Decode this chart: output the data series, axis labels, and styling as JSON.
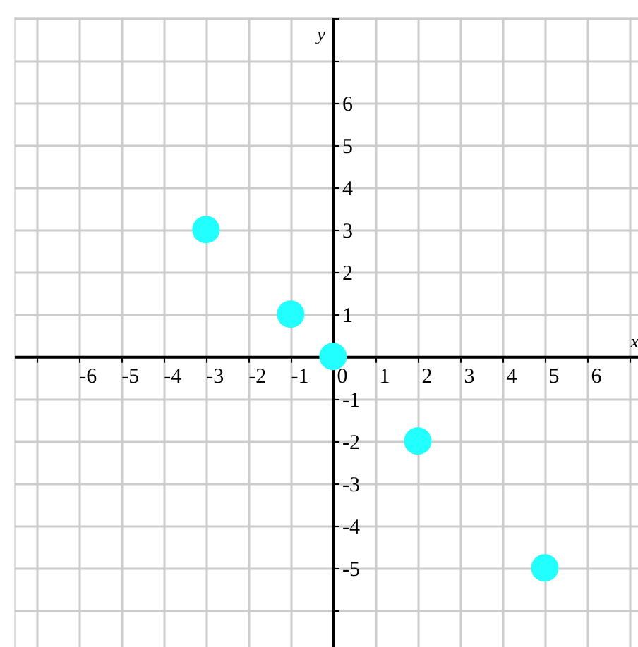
{
  "chart_data": {
    "type": "scatter",
    "xlabel": "x",
    "ylabel": "y",
    "x": [
      -3,
      -1,
      0,
      2,
      5
    ],
    "series": [
      {
        "color": "#22ffff",
        "values": [
          3,
          1,
          0,
          -2,
          -5
        ]
      }
    ],
    "xlim": [
      -7.53,
      7.2
    ],
    "ylim": [
      -6.87,
      8.03
    ],
    "xticks": [
      {
        "value": -7,
        "label": null
      },
      -6,
      -5,
      -4,
      -3,
      -2,
      -1,
      0,
      1,
      2,
      3,
      4,
      5,
      6,
      {
        "value": 7,
        "label": null
      }
    ],
    "yticks": [
      {
        "value": -6,
        "label": null
      },
      -5,
      -4,
      -3,
      -2,
      -1,
      {
        "value": 0,
        "label": null
      },
      1,
      2,
      3,
      4,
      5,
      6,
      {
        "value": 7,
        "label": null
      },
      {
        "value": 8,
        "label": null
      }
    ],
    "grid": true,
    "marker": "circle"
  }
}
